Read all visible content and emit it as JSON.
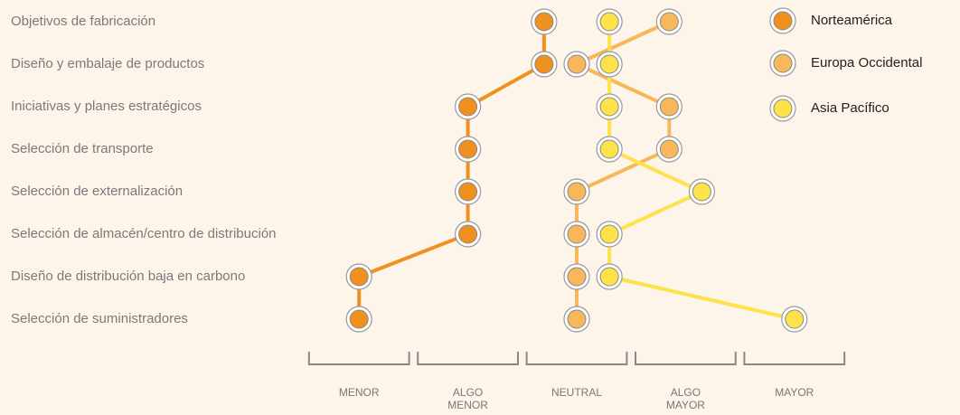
{
  "chart_data": {
    "type": "dot-line",
    "categories": [
      "Objetivos de fabricación",
      "Diseño y embalaje de productos",
      "Iniciativas y planes estratégicos",
      "Selección de transporte",
      "Selección de externalización",
      "Selección de almacén/centro de distribución",
      "Diseño de distribución baja en carbono",
      "Selección de suministradores"
    ],
    "series": [
      {
        "name": "Norteamérica",
        "color": "#f0901e",
        "values": [
          2.7,
          2.7,
          2.0,
          2.0,
          2.0,
          2.0,
          1.0,
          1.0
        ]
      },
      {
        "name": "Europa Occidental",
        "color": "#f7b75a",
        "values": [
          3.85,
          3.0,
          3.85,
          3.85,
          3.0,
          3.0,
          3.0,
          3.0
        ]
      },
      {
        "name": "Asia Pacífico",
        "color": "#fde24a",
        "values": [
          3.3,
          3.3,
          3.3,
          3.3,
          4.15,
          3.3,
          3.3,
          5.0
        ]
      }
    ],
    "xlim": [
      0.5,
      5.5
    ],
    "xticks": [
      {
        "value": 1,
        "label": "MENOR"
      },
      {
        "value": 2,
        "label": "ALGO MENOR"
      },
      {
        "value": 3,
        "label": "NEUTRAL"
      },
      {
        "value": 4,
        "label": "ALGO MAYOR"
      },
      {
        "value": 5,
        "label": "MAYOR"
      }
    ],
    "legend": "top-right"
  }
}
